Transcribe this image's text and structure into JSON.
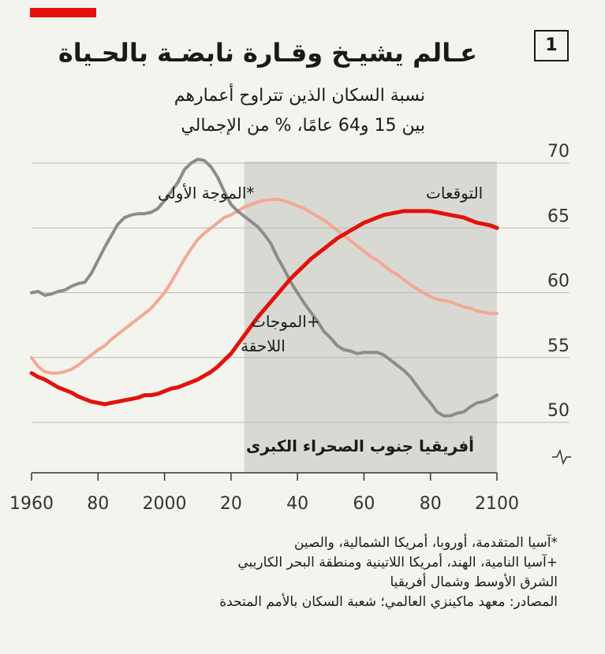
{
  "badge": "1",
  "title": "عـالم يشيـخ وقـارة نابضـة بالحـياة",
  "subtitle_line1": "نسبة السكان الذين تتراوح أعمارهم",
  "subtitle_line2": "بين 15 و64 عامًا، % من الإجمالي",
  "colors": {
    "accent": "#e3120b",
    "first_wave": "#8c8c8c",
    "later_waves": "#f4a892",
    "ssa": "#e3120b",
    "projection_shade": "#d9d9d3"
  },
  "labels": {
    "first_wave": "*الموجة الأولى",
    "later_waves_1": "+الموجات",
    "later_waves_2": "اللاحقة",
    "ssa": "أفريقيا جنوب الصحراء الكبرى",
    "projection": "التوقعات",
    "axis_break": "break-symbol"
  },
  "footnotes": {
    "note1": "*آسيا المتقدمة، أوروبا، أمريكا الشمالية، والصين",
    "note2": "+آسيا النامية، الهند، أمريكا اللاتينية ومنطقة البحر الكاريبي",
    "note3": "الشرق الأوسط وشمال أفريقيا",
    "source": "المصادر: معهد ماكينزي العالمي؛ شعبة السكان بالأمم المتحدة"
  },
  "chart_data": {
    "type": "line",
    "x_tick_labels": [
      "1960",
      "80",
      "2000",
      "20",
      "40",
      "60",
      "80",
      "2100"
    ],
    "x_ticks": [
      1960,
      1980,
      2000,
      2020,
      2040,
      2060,
      2080,
      2100
    ],
    "y_ticks": [
      50,
      55,
      60,
      65,
      70
    ],
    "ylim": [
      47.5,
      70
    ],
    "xlim": [
      1960,
      2100
    ],
    "projection_range": [
      2024,
      2100
    ],
    "grid": "horizontal",
    "series": [
      {
        "name": "*الموجة الأولى",
        "key": "first_wave",
        "x": [
          1960,
          1962,
          1964,
          1966,
          1968,
          1970,
          1972,
          1974,
          1976,
          1978,
          1980,
          1982,
          1984,
          1986,
          1988,
          1990,
          1992,
          1994,
          1996,
          1998,
          2000,
          2002,
          2004,
          2006,
          2008,
          2010,
          2012,
          2014,
          2016,
          2018,
          2020,
          2022,
          2024,
          2026,
          2028,
          2030,
          2032,
          2034,
          2036,
          2038,
          2040,
          2042,
          2044,
          2046,
          2048,
          2050,
          2052,
          2054,
          2056,
          2058,
          2060,
          2062,
          2064,
          2066,
          2068,
          2070,
          2072,
          2074,
          2076,
          2078,
          2080,
          2082,
          2084,
          2086,
          2088,
          2090,
          2092,
          2094,
          2096,
          2098,
          2100
        ],
        "values": [
          60,
          60.1,
          59.8,
          59.9,
          60.1,
          60.2,
          60.5,
          60.7,
          60.8,
          61.5,
          62.5,
          63.5,
          64.4,
          65.3,
          65.8,
          66.0,
          66.1,
          66.1,
          66.2,
          66.5,
          67.1,
          67.8,
          68.5,
          69.5,
          70.0,
          70.3,
          70.2,
          69.7,
          68.9,
          67.8,
          66.8,
          66.3,
          65.9,
          65.5,
          65.1,
          64.5,
          63.8,
          62.7,
          61.8,
          60.8,
          60.0,
          59.2,
          58.5,
          57.8,
          57.0,
          56.5,
          55.9,
          55.6,
          55.5,
          55.3,
          55.4,
          55.4,
          55.4,
          55.2,
          54.8,
          54.4,
          54.0,
          53.5,
          52.8,
          52.1,
          51.5,
          50.8,
          50.5,
          50.5,
          50.7,
          50.8,
          51.2,
          51.5,
          51.6,
          51.8,
          52.1
        ]
      },
      {
        "name": "+الموجات اللاحقة",
        "key": "later_waves",
        "x": [
          1960,
          1962,
          1964,
          1966,
          1968,
          1970,
          1972,
          1974,
          1976,
          1978,
          1980,
          1982,
          1984,
          1986,
          1988,
          1990,
          1992,
          1994,
          1996,
          1998,
          2000,
          2002,
          2004,
          2006,
          2008,
          2010,
          2012,
          2014,
          2016,
          2018,
          2020,
          2022,
          2024,
          2026,
          2028,
          2030,
          2032,
          2034,
          2036,
          2038,
          2040,
          2042,
          2044,
          2046,
          2048,
          2050,
          2052,
          2054,
          2056,
          2058,
          2060,
          2062,
          2064,
          2066,
          2068,
          2070,
          2072,
          2074,
          2076,
          2078,
          2080,
          2082,
          2084,
          2086,
          2088,
          2090,
          2092,
          2094,
          2096,
          2098,
          2100
        ],
        "values": [
          55,
          54.3,
          53.9,
          53.8,
          53.8,
          53.9,
          54.1,
          54.4,
          54.8,
          55.2,
          55.6,
          55.9,
          56.4,
          56.8,
          57.2,
          57.6,
          58.0,
          58.4,
          58.8,
          59.4,
          60.0,
          60.8,
          61.7,
          62.6,
          63.4,
          64.1,
          64.6,
          65.0,
          65.4,
          65.8,
          66.0,
          66.3,
          66.6,
          66.8,
          67.0,
          67.1,
          67.2,
          67.2,
          67.1,
          66.9,
          66.7,
          66.5,
          66.2,
          65.9,
          65.6,
          65.2,
          64.8,
          64.4,
          64.0,
          63.6,
          63.2,
          62.8,
          62.5,
          62.1,
          61.7,
          61.4,
          61.0,
          60.6,
          60.3,
          60.0,
          59.7,
          59.5,
          59.4,
          59.3,
          59.1,
          58.9,
          58.8,
          58.6,
          58.5,
          58.4,
          58.4
        ]
      },
      {
        "name": "أفريقيا جنوب الصحراء الكبرى",
        "key": "ssa",
        "x": [
          1960,
          1962,
          1964,
          1966,
          1968,
          1970,
          1972,
          1974,
          1976,
          1978,
          1980,
          1982,
          1984,
          1986,
          1988,
          1990,
          1992,
          1994,
          1996,
          1998,
          2000,
          2002,
          2004,
          2006,
          2008,
          2010,
          2012,
          2014,
          2016,
          2018,
          2020,
          2022,
          2024,
          2026,
          2028,
          2030,
          2032,
          2034,
          2036,
          2038,
          2040,
          2042,
          2044,
          2046,
          2048,
          2050,
          2052,
          2054,
          2056,
          2058,
          2060,
          2062,
          2064,
          2066,
          2068,
          2070,
          2072,
          2074,
          2076,
          2078,
          2080,
          2082,
          2084,
          2086,
          2088,
          2090,
          2092,
          2094,
          2096,
          2098,
          2100
        ],
        "values": [
          53.8,
          53.5,
          53.3,
          53.0,
          52.7,
          52.5,
          52.3,
          52.0,
          51.8,
          51.6,
          51.5,
          51.4,
          51.5,
          51.6,
          51.7,
          51.8,
          51.9,
          52.1,
          52.1,
          52.2,
          52.4,
          52.6,
          52.7,
          52.9,
          53.1,
          53.3,
          53.6,
          53.9,
          54.3,
          54.8,
          55.3,
          56.0,
          56.7,
          57.4,
          58.1,
          58.7,
          59.3,
          59.9,
          60.5,
          61.1,
          61.6,
          62.1,
          62.6,
          63.0,
          63.4,
          63.8,
          64.2,
          64.5,
          64.8,
          65.1,
          65.4,
          65.6,
          65.8,
          66.0,
          66.1,
          66.2,
          66.3,
          66.3,
          66.3,
          66.3,
          66.3,
          66.2,
          66.1,
          66.0,
          65.9,
          65.8,
          65.6,
          65.4,
          65.3,
          65.2,
          65.0
        ]
      }
    ]
  }
}
